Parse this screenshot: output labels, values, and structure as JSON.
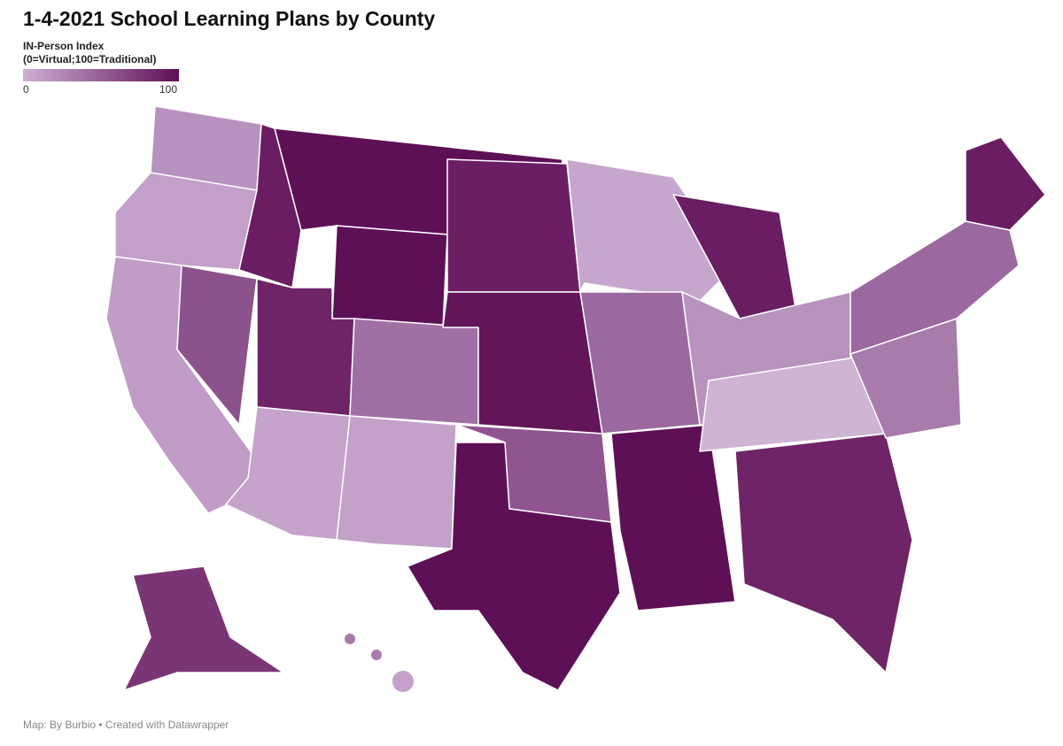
{
  "header": {
    "title": "1-4-2021 School Learning Plans by County"
  },
  "legend": {
    "title": "IN-Person Index",
    "subtitle": "(0=Virtual;100=Traditional)",
    "min": 0,
    "max": 100,
    "colors": [
      "#cdb0d3",
      "#5e1057"
    ]
  },
  "footer": {
    "text": "Map: By Burbio • Created with Datawrapper"
  }
}
